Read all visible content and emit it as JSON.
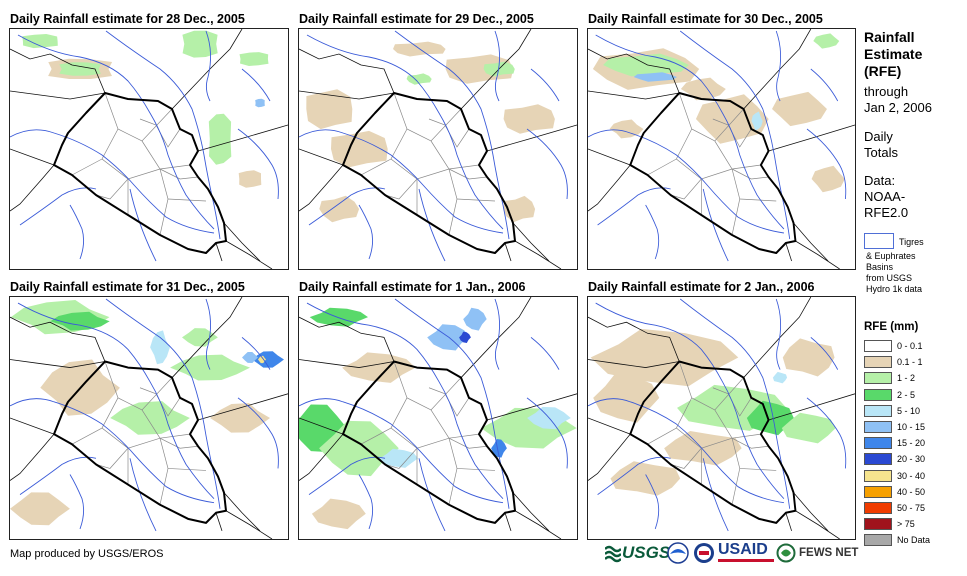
{
  "panels": [
    {
      "title": "Daily Rainfall estimate for 28 Dec., 2005"
    },
    {
      "title": "Daily Rainfall estimate for 29 Dec., 2005"
    },
    {
      "title": "Daily Rainfall estimate for 30 Dec., 2005"
    },
    {
      "title": "Daily Rainfall estimate for 31 Dec., 2005"
    },
    {
      "title": "Daily Rainfall estimate for 1 Jan., 2006"
    },
    {
      "title": "Daily Rainfall estimate for 2 Jan., 2006"
    }
  ],
  "sidebar": {
    "title_lines": [
      "Rainfall",
      "Estimate",
      "(RFE)"
    ],
    "through": "through",
    "date": "Jan 2, 2006",
    "daily_lines": [
      "Daily",
      "Totals"
    ],
    "data_lines": [
      "Data:",
      "NOAA-",
      "RFE2.0"
    ],
    "basin_lines": [
      "Tigres",
      "& Euphrates",
      "Basins",
      "from USGS",
      "Hydro 1k data"
    ]
  },
  "legend": {
    "title": "RFE (mm)",
    "items": [
      {
        "label": "0 - 0.1",
        "color": "#ffffff"
      },
      {
        "label": "0.1 - 1",
        "color": "#e6d4b6"
      },
      {
        "label": "1 - 2",
        "color": "#b5f0a8"
      },
      {
        "label": "2 - 5",
        "color": "#59d96a"
      },
      {
        "label": "5 - 10",
        "color": "#b9e6f7"
      },
      {
        "label": "10 - 15",
        "color": "#8fc1f5"
      },
      {
        "label": "15 - 20",
        "color": "#3f86ea"
      },
      {
        "label": "20 - 30",
        "color": "#2a49d2"
      },
      {
        "label": "30 - 40",
        "color": "#f6e48e"
      },
      {
        "label": "40 - 50",
        "color": "#f6a000"
      },
      {
        "label": "50 - 75",
        "color": "#f03c00"
      },
      {
        "label": "> 75",
        "color": "#a0131c"
      },
      {
        "label": "No Data",
        "color": "#a8a8a8"
      }
    ]
  },
  "footer": {
    "credit": "Map produced by USGS/EROS"
  },
  "logos": {
    "usgs": "USGS",
    "usaid": "USAID",
    "fews": "FEWS NET"
  }
}
